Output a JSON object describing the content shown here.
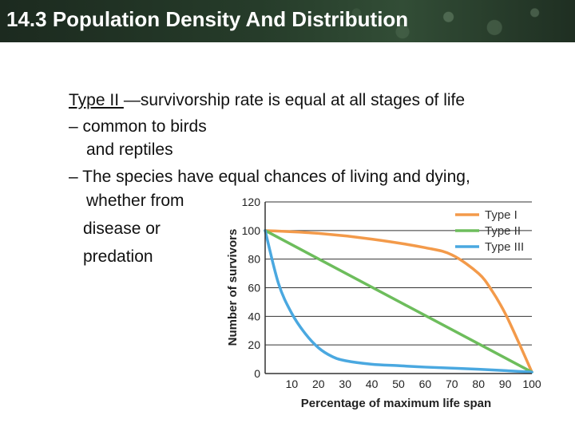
{
  "header": {
    "title": "14.3 Population Density And Distribution"
  },
  "content": {
    "type_label": "Type II ",
    "type_desc": "—survivorship rate is equal at all stages of life",
    "bullet1_line1": "– common to birds",
    "bullet1_line2": "and reptiles",
    "bullet2_line1": "– The species have equal chances of living and dying,",
    "bullet2_line2": "whether from",
    "bullet2_line3": "disease or",
    "bullet2_line4": "predation"
  },
  "colors": {
    "type1": "#f39a4a",
    "type2": "#6dbd5c",
    "type3": "#4aa8e0"
  },
  "chart_data": {
    "type": "line",
    "title": "",
    "xlabel": "Percentage of maximum life span",
    "ylabel": "Number of survivors",
    "xlim": [
      0,
      100
    ],
    "ylim": [
      0,
      120
    ],
    "xticks": [
      10,
      20,
      30,
      40,
      50,
      60,
      70,
      80,
      90,
      100
    ],
    "yticks": [
      0,
      20,
      40,
      60,
      80,
      100,
      120
    ],
    "grid": true,
    "legend": "top-right",
    "series": [
      {
        "name": "Type I",
        "color": "#f39a4a",
        "x": [
          0,
          20,
          40,
          60,
          70,
          80,
          85,
          90,
          95,
          100
        ],
        "y": [
          100,
          98,
          94,
          88,
          83,
          70,
          58,
          42,
          22,
          1
        ]
      },
      {
        "name": "Type II",
        "color": "#6dbd5c",
        "x": [
          0,
          100
        ],
        "y": [
          100,
          1
        ]
      },
      {
        "name": "Type III",
        "color": "#4aa8e0",
        "x": [
          0,
          5,
          10,
          15,
          20,
          25,
          30,
          40,
          50,
          60,
          80,
          100
        ],
        "y": [
          100,
          63,
          42,
          28,
          18,
          12,
          9,
          6.5,
          5.5,
          4.5,
          3,
          1
        ]
      }
    ]
  }
}
